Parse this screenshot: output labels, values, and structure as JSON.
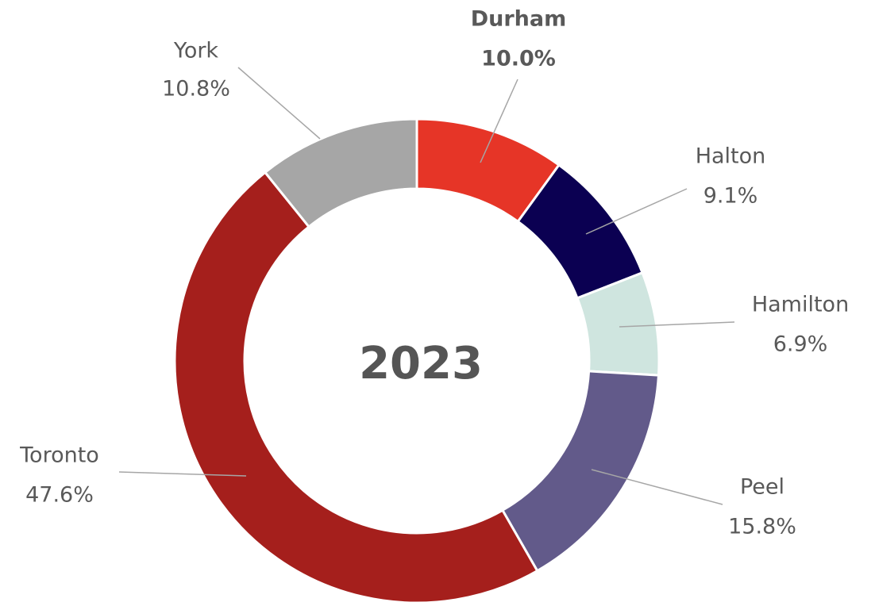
{
  "chart_data": {
    "type": "donut",
    "center_text": "2023",
    "categories": [
      "Durham",
      "Halton",
      "Hamilton",
      "Peel",
      "Toronto",
      "York"
    ],
    "values": [
      10.0,
      9.1,
      6.9,
      15.8,
      47.6,
      10.8
    ],
    "value_labels": [
      "10.0%",
      "9.1%",
      "6.9%",
      "15.8%",
      "47.6%",
      "10.8%"
    ],
    "colors": [
      "#e63527",
      "#0b0052",
      "#cfe5df",
      "#625a8a",
      "#a51f1c",
      "#a6a6a6"
    ],
    "highlight_index": 0
  }
}
